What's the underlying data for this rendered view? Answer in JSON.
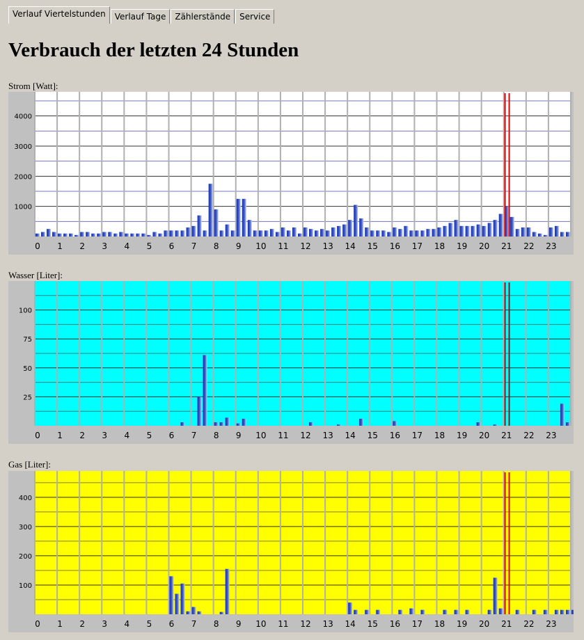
{
  "tabs": [
    {
      "label": "Verlauf Viertelstunden",
      "active": true
    },
    {
      "label": "Verlauf Tage",
      "active": false
    },
    {
      "label": "Zählerstände",
      "active": false
    },
    {
      "label": "Service",
      "active": false
    }
  ],
  "page_title": "Verbrauch der letzten 24 Stunden",
  "chart_data": [
    {
      "type": "bar",
      "title": "Strom [Watt]:",
      "background": "#ffffff",
      "bar_color": "#3f5fd0",
      "marker_color": "#e00000",
      "x_labels": [
        "0",
        "1",
        "2",
        "3",
        "4",
        "5",
        "6",
        "7",
        "8",
        "9",
        "10",
        "11",
        "12",
        "13",
        "14",
        "15",
        "16",
        "17",
        "18",
        "19",
        "20",
        "21",
        "22",
        "23"
      ],
      "y_ticks": [
        1000,
        2000,
        3000,
        4000
      ],
      "ylim": [
        0,
        4800
      ],
      "marker_hour": 21.15,
      "values": [
        100,
        150,
        250,
        150,
        100,
        100,
        100,
        50,
        150,
        150,
        100,
        100,
        150,
        150,
        100,
        150,
        100,
        100,
        100,
        100,
        50,
        150,
        100,
        200,
        200,
        200,
        200,
        300,
        350,
        700,
        200,
        1750,
        900,
        200,
        400,
        200,
        1250,
        1250,
        550,
        200,
        200,
        200,
        250,
        150,
        300,
        200,
        300,
        100,
        300,
        250,
        200,
        250,
        200,
        300,
        350,
        400,
        550,
        1050,
        600,
        300,
        200,
        200,
        200,
        150,
        300,
        250,
        350,
        200,
        200,
        200,
        250,
        250,
        300,
        350,
        450,
        550,
        350,
        350,
        350,
        400,
        350,
        450,
        550,
        750,
        1000,
        650,
        250,
        300,
        300,
        150,
        100,
        50,
        300,
        350,
        150,
        150
      ]
    },
    {
      "type": "bar",
      "title": "Wasser [Liter]:",
      "background": "#00ffff",
      "bar_color": "#3f5fd0",
      "marker_color": "#8b1a1a",
      "x_labels": [
        "0",
        "1",
        "2",
        "3",
        "4",
        "5",
        "6",
        "7",
        "8",
        "9",
        "10",
        "11",
        "12",
        "13",
        "14",
        "15",
        "16",
        "17",
        "18",
        "19",
        "20",
        "21",
        "22",
        "23"
      ],
      "y_ticks": [
        25,
        50,
        75,
        100
      ],
      "ylim": [
        0,
        125
      ],
      "marker_hour": 21.15,
      "values": [
        0,
        0,
        0,
        0,
        0,
        0,
        0,
        0,
        0,
        0,
        0,
        0,
        0,
        0,
        0,
        0,
        0,
        0,
        0,
        0,
        0,
        0,
        0,
        0,
        0,
        0,
        3,
        0,
        0,
        25,
        61,
        0,
        3,
        3,
        7,
        0,
        2,
        6,
        0,
        0,
        0,
        0,
        0,
        0,
        0,
        0,
        0,
        0,
        0,
        3,
        0,
        0,
        0,
        0,
        1,
        0,
        0,
        0,
        6,
        0,
        0,
        0,
        0,
        0,
        4,
        0,
        0,
        0,
        0,
        0,
        0,
        0,
        0,
        0,
        0,
        0,
        0,
        0,
        0,
        3,
        0,
        0,
        1,
        0,
        0,
        0,
        0,
        0,
        0,
        0,
        0,
        0,
        0,
        0,
        19,
        3
      ]
    },
    {
      "type": "bar",
      "title": "Gas [Liter]:",
      "background": "#ffff00",
      "bar_color": "#3f5fd0",
      "marker_color": "#e00000",
      "x_labels": [
        "0",
        "1",
        "2",
        "3",
        "4",
        "5",
        "6",
        "7",
        "8",
        "9",
        "10",
        "11",
        "12",
        "13",
        "14",
        "15",
        "16",
        "17",
        "18",
        "19",
        "20",
        "21",
        "22",
        "23"
      ],
      "y_ticks": [
        100,
        200,
        300,
        400
      ],
      "ylim": [
        0,
        490
      ],
      "marker_hour": 21.15,
      "values": [
        0,
        0,
        0,
        0,
        0,
        0,
        0,
        0,
        0,
        0,
        0,
        0,
        0,
        0,
        0,
        0,
        0,
        0,
        0,
        0,
        0,
        0,
        0,
        0,
        130,
        70,
        105,
        10,
        25,
        10,
        0,
        0,
        0,
        8,
        155,
        0,
        0,
        0,
        0,
        0,
        0,
        0,
        0,
        0,
        0,
        0,
        0,
        0,
        0,
        0,
        0,
        0,
        0,
        0,
        0,
        0,
        40,
        15,
        0,
        15,
        0,
        15,
        0,
        0,
        0,
        15,
        0,
        20,
        0,
        15,
        0,
        0,
        0,
        15,
        0,
        15,
        0,
        15,
        0,
        0,
        0,
        15,
        125,
        20,
        0,
        0,
        15,
        0,
        0,
        15,
        0,
        15,
        0,
        15,
        15,
        15,
        15,
        15,
        30,
        15,
        0,
        15,
        0,
        0,
        0,
        0,
        0,
        0
      ]
    }
  ]
}
